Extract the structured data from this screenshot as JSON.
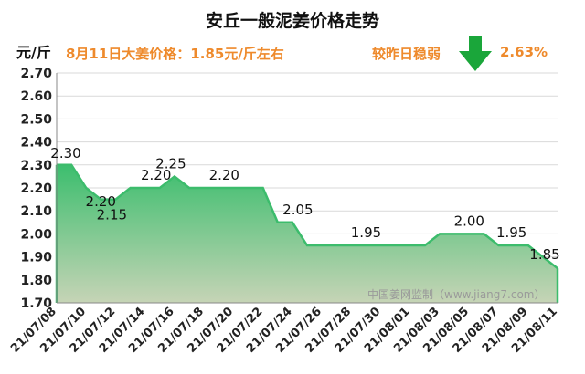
{
  "header": {
    "title": "安丘一般泥姜价格走势",
    "unit": "元/斤",
    "price_note": "8月11日大姜价格：1.85元/斤左右",
    "change_text": "较昨日稳弱",
    "change_pct": "2.63%",
    "change_icon": "down-arrow-icon",
    "arrow_color": "#1aa63a",
    "accent_color": "#ee8a2c"
  },
  "watermark": "中国姜网监制（www.jiang7.com）",
  "chart_data": {
    "type": "area",
    "title": "安丘一般泥姜价格走势",
    "ylabel": "元/斤",
    "xlabel": "",
    "ylim": [
      1.7,
      2.7
    ],
    "yticks": [
      "1.70",
      "1.80",
      "1.90",
      "2.00",
      "2.10",
      "2.20",
      "2.30",
      "2.40",
      "2.50",
      "2.60",
      "2.70"
    ],
    "grid": true,
    "x": [
      "21/07/08",
      "21/07/09",
      "21/07/10",
      "21/07/11",
      "21/07/12",
      "21/07/13",
      "21/07/14",
      "21/07/15",
      "21/07/16",
      "21/07/17",
      "21/07/18",
      "21/07/19",
      "21/07/20",
      "21/07/21",
      "21/07/22",
      "21/07/23",
      "21/07/24",
      "21/07/25",
      "21/07/26",
      "21/07/27",
      "21/07/28",
      "21/07/29",
      "21/07/30",
      "21/07/31",
      "21/08/01",
      "21/08/02",
      "21/08/03",
      "21/08/04",
      "21/08/05",
      "21/08/06",
      "21/08/07",
      "21/08/08",
      "21/08/09",
      "21/08/10",
      "21/08/11"
    ],
    "values": [
      2.3,
      2.3,
      2.2,
      2.15,
      2.15,
      2.2,
      2.2,
      2.2,
      2.25,
      2.2,
      2.2,
      2.2,
      2.2,
      2.2,
      2.2,
      2.05,
      2.05,
      1.95,
      1.95,
      1.95,
      1.95,
      1.95,
      1.95,
      1.95,
      1.95,
      1.95,
      2.0,
      2.0,
      2.0,
      2.0,
      1.95,
      1.95,
      1.95,
      1.9,
      1.85
    ],
    "xtick_labels": [
      "21/07/08",
      "21/07/10",
      "21/07/12",
      "21/07/14",
      "21/07/16",
      "21/07/18",
      "21/07/20",
      "21/07/22",
      "21/07/24",
      "21/07/26",
      "21/07/28",
      "21/07/30",
      "21/08/01",
      "21/08/03",
      "21/08/05",
      "21/08/07",
      "21/08/09",
      "21/08/11"
    ],
    "data_labels": [
      {
        "index": 0,
        "text": "2.30"
      },
      {
        "index": 2,
        "text": "2.20"
      },
      {
        "index": 3,
        "text": "2.15"
      },
      {
        "index": 6,
        "text": "2.20"
      },
      {
        "index": 8,
        "text": "2.25"
      },
      {
        "index": 11,
        "text": "2.20"
      },
      {
        "index": 16,
        "text": "2.05"
      },
      {
        "index": 21,
        "text": "1.95"
      },
      {
        "index": 28,
        "text": "2.00"
      },
      {
        "index": 31,
        "text": "1.95"
      },
      {
        "index": 34,
        "text": "1.85"
      }
    ],
    "line_color": "#3cbc6c",
    "fill_top_color": "#3cbe6e",
    "fill_bottom_color": "#c6d4b6"
  }
}
